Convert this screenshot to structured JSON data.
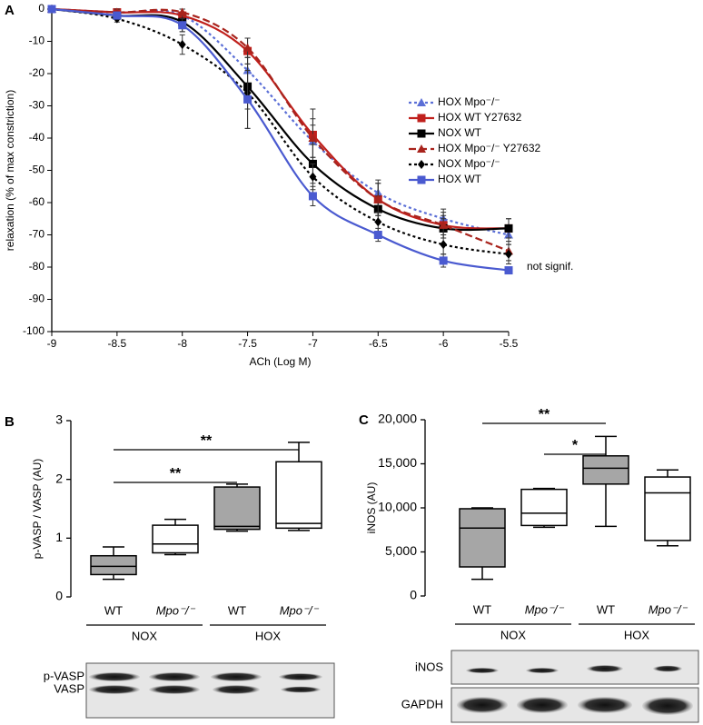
{
  "chart_data": [
    {
      "type": "line",
      "panel": "A",
      "x_label": "ACh (Log M)",
      "y_label": "relaxation (% of max constriction)",
      "x": [
        -9,
        -8.5,
        -8,
        -7.5,
        -7,
        -6.5,
        -6,
        -5.5
      ],
      "xlim": [
        -9,
        -5.5
      ],
      "xticks": [
        -9,
        -8.5,
        -8,
        -7.5,
        -7,
        -6.5,
        -6,
        -5.5
      ],
      "ylim": [
        -100,
        0
      ],
      "yticks": [
        0,
        -10,
        -20,
        -30,
        -40,
        -50,
        -60,
        -70,
        -80,
        -90,
        -100
      ],
      "series": [
        {
          "name": "HOX  Mpo⁻/⁻",
          "color": "#5b6fd6",
          "dash": "dotted",
          "marker": "triangle",
          "values": [
            0,
            -1,
            -2,
            -19,
            -41,
            -57,
            -65,
            -70
          ],
          "errors": [
            0,
            1,
            2,
            4,
            5,
            4,
            3,
            3
          ]
        },
        {
          "name": "HOX WT Y27632",
          "color": "#c0201c",
          "dash": "solid",
          "marker": "square",
          "values": [
            0,
            -1,
            -2,
            -13,
            -39,
            -59,
            -67,
            -68
          ],
          "errors": [
            0,
            1,
            2,
            4,
            8,
            5,
            4,
            3
          ]
        },
        {
          "name": "NOX WT",
          "color": "#000000",
          "dash": "solid",
          "marker": "square",
          "values": [
            0,
            -2,
            -4,
            -24,
            -48,
            -62,
            -68,
            -68
          ],
          "errors": [
            0,
            1,
            3,
            7,
            6,
            4,
            3,
            3
          ]
        },
        {
          "name": "HOX Mpo⁻/⁻ Y27632",
          "color": "#a8231c",
          "dash": "dashed",
          "marker": "triangle",
          "values": [
            0,
            -1,
            -1,
            -12,
            -40,
            -59,
            -67,
            -75
          ],
          "errors": [
            0,
            1,
            1,
            3,
            6,
            5,
            3,
            3
          ]
        },
        {
          "name": "NOX Mpo⁻/⁻",
          "color": "#000000",
          "dash": "dotted",
          "marker": "diamond",
          "values": [
            0,
            -3,
            -11,
            -26,
            -52,
            -66,
            -73,
            -76
          ],
          "errors": [
            0,
            1,
            3,
            11,
            4,
            3,
            3,
            3
          ]
        },
        {
          "name": "HOX WT",
          "color": "#4a5ad0",
          "dash": "solid",
          "marker": "square",
          "values": [
            0,
            -2,
            -5,
            -28,
            -58,
            -70,
            -78,
            -81
          ],
          "errors": [
            0,
            1,
            2,
            9,
            3,
            2,
            2,
            1
          ]
        }
      ],
      "annotation": "not signif."
    },
    {
      "type": "box",
      "panel": "B",
      "y_label": "p-VASP / VASP (AU)",
      "categories": [
        "WT",
        "Mpo⁻/⁻",
        "WT",
        "Mpo⁻/⁻"
      ],
      "groups": [
        "NOX",
        "HOX"
      ],
      "ylim": [
        0,
        3
      ],
      "yticks": [
        0,
        1,
        2,
        3
      ],
      "boxes": [
        {
          "min": 0.3,
          "q1": 0.38,
          "median": 0.52,
          "q3": 0.7,
          "max": 0.85,
          "color": "#a6a6a6"
        },
        {
          "min": 0.72,
          "q1": 0.75,
          "median": 0.9,
          "q3": 1.22,
          "max": 1.32,
          "color": "#ffffff"
        },
        {
          "min": 1.12,
          "q1": 1.15,
          "median": 1.2,
          "q3": 1.87,
          "max": 1.92,
          "color": "#a6a6a6"
        },
        {
          "min": 1.13,
          "q1": 1.17,
          "median": 1.25,
          "q3": 2.3,
          "max": 2.63,
          "color": "#ffffff"
        }
      ],
      "brackets": [
        {
          "from": 0,
          "to": 2,
          "label": "**"
        },
        {
          "from": 0,
          "to": 3,
          "label": "**"
        }
      ],
      "blot_labels": [
        "p-VASP",
        "VASP"
      ]
    },
    {
      "type": "box",
      "panel": "C",
      "y_label": "iNOS (AU)",
      "categories": [
        "WT",
        "Mpo⁻/⁻",
        "WT",
        "Mpo⁻/⁻"
      ],
      "groups": [
        "NOX",
        "HOX"
      ],
      "ylim": [
        0,
        20000
      ],
      "yticks": [
        0,
        {
          "value": 5000,
          "label": "5,000"
        },
        {
          "value": 10000,
          "label": "10,000"
        },
        {
          "value": 15000,
          "label": "15,000"
        },
        {
          "value": 20000,
          "label": "20,000"
        }
      ],
      "boxes": [
        {
          "min": 1900,
          "q1": 3300,
          "median": 7700,
          "q3": 9900,
          "max": 10000,
          "color": "#a6a6a6"
        },
        {
          "min": 7800,
          "q1": 8000,
          "median": 9400,
          "q3": 12100,
          "max": 12200,
          "color": "#ffffff"
        },
        {
          "min": 7900,
          "q1": 12700,
          "median": 14500,
          "q3": 15900,
          "max": 18100,
          "color": "#a6a6a6"
        },
        {
          "min": 5700,
          "q1": 6300,
          "median": 11700,
          "q3": 13500,
          "max": 14300,
          "color": "#ffffff"
        }
      ],
      "brackets": [
        {
          "from": 1,
          "to": 2,
          "label": "*"
        },
        {
          "from": 0,
          "to": 2,
          "label": "**"
        }
      ],
      "blot_labels": [
        "iNOS",
        "GAPDH"
      ]
    }
  ]
}
